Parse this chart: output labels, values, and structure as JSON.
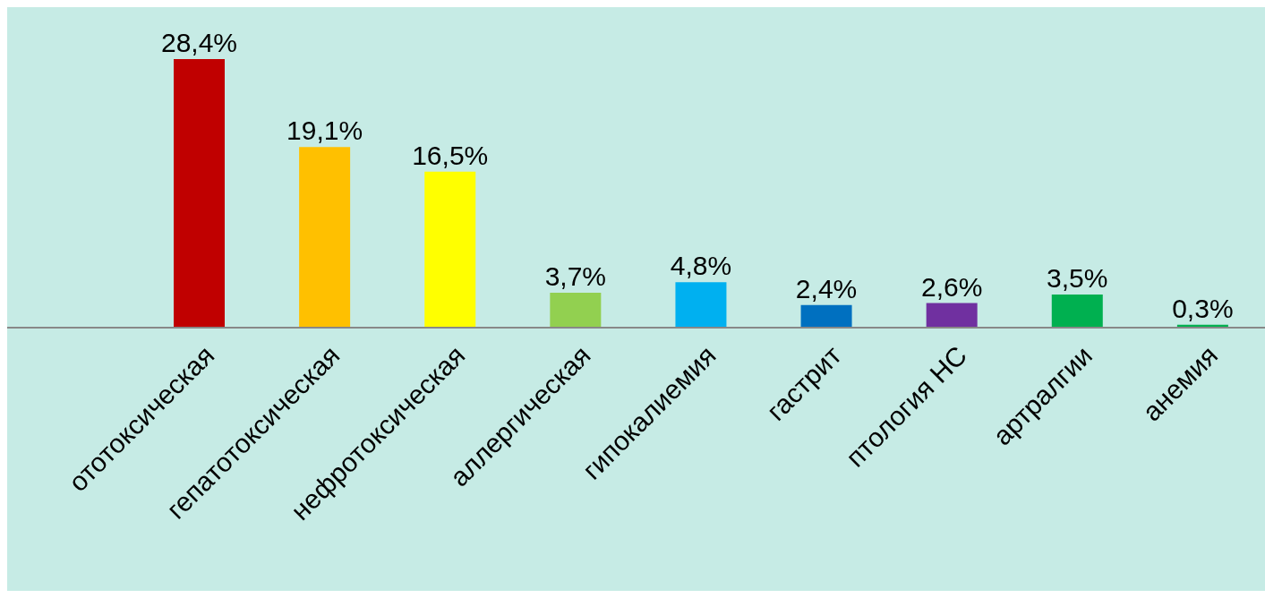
{
  "chart_data": {
    "type": "bar",
    "categories": [
      "ототоксическая",
      "гепатотоксическая",
      "нефротоксическая",
      "аллергическая",
      "гипокалиемия",
      "гастрит",
      "птология НС",
      "артралгии",
      "анемия"
    ],
    "values": [
      28.4,
      19.1,
      16.5,
      3.7,
      4.8,
      2.4,
      2.6,
      3.5,
      0.3
    ],
    "colors": [
      "#c00000",
      "#ffc000",
      "#ffff00",
      "#92d050",
      "#00b0f0",
      "#0070c0",
      "#7030a0",
      "#00b050",
      "#00b050"
    ],
    "value_labels": [
      "28,4%",
      "19,1%",
      "16,5%",
      "3,7%",
      "4,8%",
      "2,4%",
      "2,6%",
      "3,5%",
      "0,3%"
    ],
    "grid": false,
    "legend": false
  }
}
